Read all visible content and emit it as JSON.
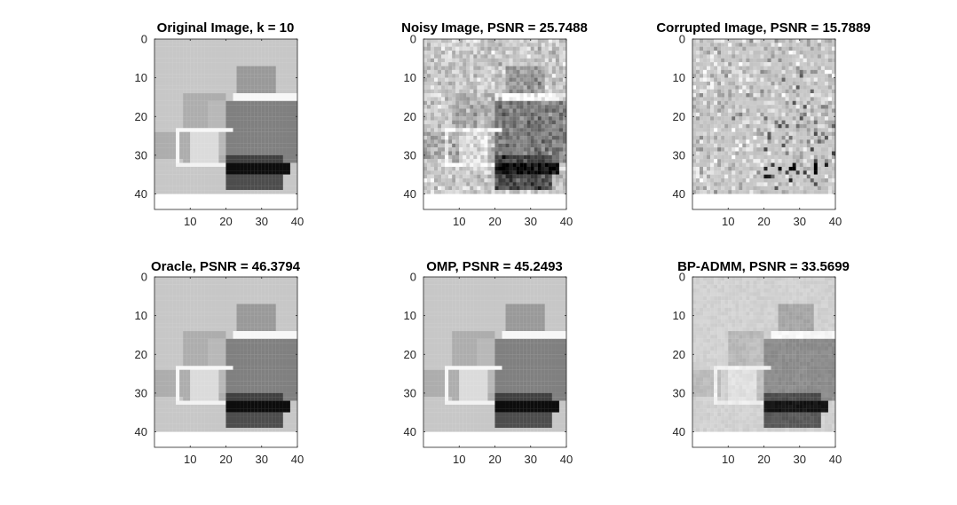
{
  "chart_data": [
    {
      "type": "heatmap",
      "title": "Original Image, k = 10",
      "colormap": "gray",
      "xticks": [
        10,
        20,
        30,
        40
      ],
      "yticks": [
        0,
        10,
        20,
        30,
        40
      ],
      "xlim": [
        0,
        40
      ],
      "ylim": [
        0,
        44
      ],
      "image_rows": [
        0,
        40
      ],
      "noise": "none",
      "rects": [
        {
          "x": [
            0,
            40
          ],
          "y": [
            0,
            40
          ],
          "v": 0.78
        },
        {
          "x": [
            23,
            34
          ],
          "y": [
            7,
            25
          ],
          "v": 0.6
        },
        {
          "x": [
            8,
            20
          ],
          "y": [
            14,
            32
          ],
          "v": 0.68
        },
        {
          "x": [
            20,
            40
          ],
          "y": [
            16,
            32
          ],
          "v": 0.5
        },
        {
          "x": [
            15,
            20
          ],
          "y": [
            16,
            30
          ],
          "v": 0.72
        },
        {
          "x": [
            0,
            8
          ],
          "y": [
            24,
            31
          ],
          "v": 0.68
        },
        {
          "x": [
            22,
            40
          ],
          "y": [
            14,
            16
          ],
          "v": 0.97
        },
        {
          "x": [
            6,
            22
          ],
          "y": [
            23,
            24
          ],
          "v": 0.97
        },
        {
          "x": [
            6,
            7
          ],
          "y": [
            23,
            33
          ],
          "v": 0.97
        },
        {
          "x": [
            6,
            20
          ],
          "y": [
            32,
            33
          ],
          "v": 0.95
        },
        {
          "x": [
            10,
            18
          ],
          "y": [
            24,
            32
          ],
          "v": 0.86
        },
        {
          "x": [
            20,
            36
          ],
          "y": [
            30,
            34
          ],
          "v": 0.25
        },
        {
          "x": [
            20,
            38
          ],
          "y": [
            32,
            35
          ],
          "v": 0.05
        },
        {
          "x": [
            20,
            36
          ],
          "y": [
            35,
            39
          ],
          "v": 0.3
        }
      ]
    },
    {
      "type": "heatmap",
      "title": "Noisy Image, PSNR = 25.7488",
      "colormap": "gray",
      "xticks": [
        10,
        20,
        30,
        40
      ],
      "yticks": [
        0,
        10,
        20,
        30,
        40
      ],
      "xlim": [
        0,
        40
      ],
      "ylim": [
        0,
        44
      ],
      "image_rows": [
        0,
        40
      ],
      "noise": "gaussian",
      "rects": [
        {
          "x": [
            0,
            40
          ],
          "y": [
            0,
            40
          ],
          "v": 0.78
        },
        {
          "x": [
            23,
            34
          ],
          "y": [
            7,
            25
          ],
          "v": 0.6
        },
        {
          "x": [
            8,
            20
          ],
          "y": [
            14,
            32
          ],
          "v": 0.68
        },
        {
          "x": [
            20,
            40
          ],
          "y": [
            16,
            32
          ],
          "v": 0.5
        },
        {
          "x": [
            15,
            20
          ],
          "y": [
            16,
            30
          ],
          "v": 0.72
        },
        {
          "x": [
            0,
            8
          ],
          "y": [
            24,
            31
          ],
          "v": 0.68
        },
        {
          "x": [
            22,
            40
          ],
          "y": [
            14,
            16
          ],
          "v": 0.97
        },
        {
          "x": [
            6,
            22
          ],
          "y": [
            23,
            24
          ],
          "v": 0.97
        },
        {
          "x": [
            6,
            7
          ],
          "y": [
            23,
            33
          ],
          "v": 0.97
        },
        {
          "x": [
            6,
            20
          ],
          "y": [
            32,
            33
          ],
          "v": 0.95
        },
        {
          "x": [
            10,
            18
          ],
          "y": [
            24,
            32
          ],
          "v": 0.86
        },
        {
          "x": [
            20,
            36
          ],
          "y": [
            30,
            34
          ],
          "v": 0.25
        },
        {
          "x": [
            20,
            38
          ],
          "y": [
            32,
            35
          ],
          "v": 0.05
        },
        {
          "x": [
            20,
            36
          ],
          "y": [
            35,
            39
          ],
          "v": 0.3
        }
      ]
    },
    {
      "type": "heatmap",
      "title": "Corrupted Image, PSNR = 15.7889",
      "colormap": "gray",
      "xticks": [
        10,
        20,
        30,
        40
      ],
      "yticks": [
        0,
        10,
        20,
        30,
        40
      ],
      "xlim": [
        0,
        40
      ],
      "ylim": [
        0,
        44
      ],
      "image_rows": [
        0,
        40
      ],
      "noise": "corrupted",
      "rects": [
        {
          "x": [
            0,
            40
          ],
          "y": [
            0,
            40
          ],
          "v": 0.78
        },
        {
          "x": [
            23,
            34
          ],
          "y": [
            7,
            25
          ],
          "v": 0.6
        },
        {
          "x": [
            8,
            20
          ],
          "y": [
            14,
            32
          ],
          "v": 0.68
        },
        {
          "x": [
            20,
            40
          ],
          "y": [
            16,
            32
          ],
          "v": 0.5
        },
        {
          "x": [
            15,
            20
          ],
          "y": [
            16,
            30
          ],
          "v": 0.72
        },
        {
          "x": [
            0,
            8
          ],
          "y": [
            24,
            31
          ],
          "v": 0.68
        },
        {
          "x": [
            22,
            40
          ],
          "y": [
            14,
            16
          ],
          "v": 0.97
        },
        {
          "x": [
            6,
            22
          ],
          "y": [
            23,
            24
          ],
          "v": 0.97
        },
        {
          "x": [
            6,
            7
          ],
          "y": [
            23,
            33
          ],
          "v": 0.97
        },
        {
          "x": [
            6,
            20
          ],
          "y": [
            32,
            33
          ],
          "v": 0.95
        },
        {
          "x": [
            10,
            18
          ],
          "y": [
            24,
            32
          ],
          "v": 0.86
        },
        {
          "x": [
            20,
            36
          ],
          "y": [
            30,
            34
          ],
          "v": 0.25
        },
        {
          "x": [
            20,
            38
          ],
          "y": [
            32,
            35
          ],
          "v": 0.05
        },
        {
          "x": [
            20,
            36
          ],
          "y": [
            35,
            39
          ],
          "v": 0.3
        }
      ]
    },
    {
      "type": "heatmap",
      "title": "Oracle, PSNR = 46.3794",
      "colormap": "gray",
      "xticks": [
        10,
        20,
        30,
        40
      ],
      "yticks": [
        0,
        10,
        20,
        30,
        40
      ],
      "xlim": [
        0,
        40
      ],
      "ylim": [
        0,
        44
      ],
      "image_rows": [
        0,
        40
      ],
      "noise": "none",
      "rects": [
        {
          "x": [
            0,
            40
          ],
          "y": [
            0,
            40
          ],
          "v": 0.78
        },
        {
          "x": [
            23,
            34
          ],
          "y": [
            7,
            25
          ],
          "v": 0.6
        },
        {
          "x": [
            8,
            20
          ],
          "y": [
            14,
            32
          ],
          "v": 0.68
        },
        {
          "x": [
            20,
            40
          ],
          "y": [
            16,
            32
          ],
          "v": 0.5
        },
        {
          "x": [
            15,
            20
          ],
          "y": [
            16,
            30
          ],
          "v": 0.72
        },
        {
          "x": [
            0,
            8
          ],
          "y": [
            24,
            31
          ],
          "v": 0.68
        },
        {
          "x": [
            22,
            40
          ],
          "y": [
            14,
            16
          ],
          "v": 0.97
        },
        {
          "x": [
            6,
            22
          ],
          "y": [
            23,
            24
          ],
          "v": 0.97
        },
        {
          "x": [
            6,
            7
          ],
          "y": [
            23,
            33
          ],
          "v": 0.97
        },
        {
          "x": [
            6,
            20
          ],
          "y": [
            32,
            33
          ],
          "v": 0.95
        },
        {
          "x": [
            10,
            18
          ],
          "y": [
            24,
            32
          ],
          "v": 0.86
        },
        {
          "x": [
            20,
            36
          ],
          "y": [
            30,
            34
          ],
          "v": 0.25
        },
        {
          "x": [
            20,
            38
          ],
          "y": [
            32,
            35
          ],
          "v": 0.05
        },
        {
          "x": [
            20,
            36
          ],
          "y": [
            35,
            39
          ],
          "v": 0.3
        }
      ]
    },
    {
      "type": "heatmap",
      "title": "OMP, PSNR = 45.2493",
      "colormap": "gray",
      "xticks": [
        10,
        20,
        30,
        40
      ],
      "yticks": [
        0,
        10,
        20,
        30,
        40
      ],
      "xlim": [
        0,
        40
      ],
      "ylim": [
        0,
        44
      ],
      "image_rows": [
        0,
        40
      ],
      "noise": "none",
      "rects": [
        {
          "x": [
            0,
            40
          ],
          "y": [
            0,
            40
          ],
          "v": 0.78
        },
        {
          "x": [
            23,
            34
          ],
          "y": [
            7,
            25
          ],
          "v": 0.6
        },
        {
          "x": [
            8,
            20
          ],
          "y": [
            14,
            32
          ],
          "v": 0.68
        },
        {
          "x": [
            20,
            40
          ],
          "y": [
            16,
            32
          ],
          "v": 0.5
        },
        {
          "x": [
            15,
            20
          ],
          "y": [
            16,
            30
          ],
          "v": 0.72
        },
        {
          "x": [
            0,
            8
          ],
          "y": [
            24,
            31
          ],
          "v": 0.68
        },
        {
          "x": [
            22,
            40
          ],
          "y": [
            14,
            16
          ],
          "v": 0.97
        },
        {
          "x": [
            6,
            22
          ],
          "y": [
            23,
            24
          ],
          "v": 0.97
        },
        {
          "x": [
            6,
            7
          ],
          "y": [
            23,
            33
          ],
          "v": 0.97
        },
        {
          "x": [
            6,
            20
          ],
          "y": [
            32,
            33
          ],
          "v": 0.95
        },
        {
          "x": [
            10,
            18
          ],
          "y": [
            24,
            32
          ],
          "v": 0.86
        },
        {
          "x": [
            20,
            36
          ],
          "y": [
            30,
            34
          ],
          "v": 0.25
        },
        {
          "x": [
            20,
            38
          ],
          "y": [
            32,
            35
          ],
          "v": 0.05
        },
        {
          "x": [
            20,
            36
          ],
          "y": [
            35,
            39
          ],
          "v": 0.3
        }
      ]
    },
    {
      "type": "heatmap",
      "title": "BP-ADMM, PSNR = 33.5699",
      "colormap": "gray",
      "xticks": [
        10,
        20,
        30,
        40
      ],
      "yticks": [
        0,
        10,
        20,
        30,
        40
      ],
      "xlim": [
        0,
        40
      ],
      "ylim": [
        0,
        44
      ],
      "image_rows": [
        0,
        40
      ],
      "noise": "mild",
      "rects": [
        {
          "x": [
            0,
            40
          ],
          "y": [
            0,
            40
          ],
          "v": 0.82
        },
        {
          "x": [
            24,
            34
          ],
          "y": [
            7,
            25
          ],
          "v": 0.65
        },
        {
          "x": [
            10,
            20
          ],
          "y": [
            14,
            32
          ],
          "v": 0.72
        },
        {
          "x": [
            20,
            40
          ],
          "y": [
            16,
            32
          ],
          "v": 0.55
        },
        {
          "x": [
            15,
            20
          ],
          "y": [
            16,
            30
          ],
          "v": 0.75
        },
        {
          "x": [
            0,
            8
          ],
          "y": [
            24,
            31
          ],
          "v": 0.74
        },
        {
          "x": [
            22,
            40
          ],
          "y": [
            14,
            16
          ],
          "v": 0.97
        },
        {
          "x": [
            6,
            22
          ],
          "y": [
            23,
            24
          ],
          "v": 0.95
        },
        {
          "x": [
            6,
            7
          ],
          "y": [
            23,
            33
          ],
          "v": 0.95
        },
        {
          "x": [
            6,
            20
          ],
          "y": [
            32,
            33
          ],
          "v": 0.93
        },
        {
          "x": [
            10,
            18
          ],
          "y": [
            24,
            32
          ],
          "v": 0.88
        },
        {
          "x": [
            20,
            36
          ],
          "y": [
            30,
            34
          ],
          "v": 0.3
        },
        {
          "x": [
            20,
            38
          ],
          "y": [
            32,
            35
          ],
          "v": 0.08
        },
        {
          "x": [
            20,
            36
          ],
          "y": [
            35,
            39
          ],
          "v": 0.35
        }
      ]
    }
  ]
}
